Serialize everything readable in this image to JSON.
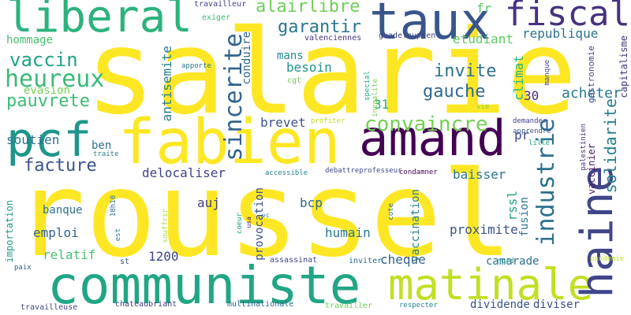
{
  "cloud": {
    "background": "#ffffff",
    "words": [
      {
        "text": "salarie",
        "color": "#fde725",
        "vertical": false
      },
      {
        "text": "roussel",
        "color": "#fde725",
        "vertical": false
      },
      {
        "text": "communiste",
        "color": "#21a685",
        "vertical": false
      },
      {
        "text": "fabien",
        "color": "#fde725",
        "vertical": false
      },
      {
        "text": "amand",
        "color": "#440154",
        "vertical": false
      },
      {
        "text": "matinale",
        "color": "#c2df23",
        "vertical": false
      },
      {
        "text": "liberal",
        "color": "#2db27d",
        "vertical": false
      },
      {
        "text": "taux",
        "color": "#39568c",
        "vertical": false
      },
      {
        "text": "pcf",
        "color": "#1f968b",
        "vertical": false
      },
      {
        "text": "haine",
        "color": "#404688",
        "vertical": true
      },
      {
        "text": "fiscal",
        "color": "#46327e",
        "vertical": false
      },
      {
        "text": "convaincre",
        "color": "#75d054",
        "vertical": false
      },
      {
        "text": "industrie",
        "color": "#2d708e",
        "vertical": true
      },
      {
        "text": "sincerite",
        "color": "#33638d",
        "vertical": true
      },
      {
        "text": "heureux",
        "color": "#3aba76",
        "vertical": false
      },
      {
        "text": "vaccin",
        "color": "#20a386",
        "vertical": false
      },
      {
        "text": "pauvrete",
        "color": "#3dbc74",
        "vertical": false
      },
      {
        "text": "facture",
        "color": "#3b528b",
        "vertical": false
      },
      {
        "text": "gauche",
        "color": "#31688e",
        "vertical": false
      },
      {
        "text": "invite",
        "color": "#2d718e",
        "vertical": false
      },
      {
        "text": "garantir",
        "color": "#2a768e",
        "vertical": false
      },
      {
        "text": "alairlibre",
        "color": "#6ece58",
        "vertical": false
      },
      {
        "text": "republique",
        "color": "#2c728e",
        "vertical": false
      },
      {
        "text": "acheter",
        "color": "#2a788e",
        "vertical": false
      },
      {
        "text": "solidarite",
        "color": "#277f8e",
        "vertical": true
      },
      {
        "text": "capitalisme",
        "color": "#46337f",
        "vertical": true
      },
      {
        "text": "gastronomie",
        "color": "#3e4a89",
        "vertical": true
      },
      {
        "text": "vaccinier",
        "color": "#481a6c",
        "vertical": true
      },
      {
        "text": "mans",
        "color": "#23898e",
        "vertical": false
      },
      {
        "text": "besoin",
        "color": "#20928c",
        "vertical": false
      },
      {
        "text": "climat",
        "color": "#2fb47c",
        "vertical": true
      },
      {
        "text": "30",
        "color": "#472c7a",
        "vertical": false
      },
      {
        "text": "31",
        "color": "#25ab82",
        "vertical": false
      },
      {
        "text": "brevet",
        "color": "#3b528b",
        "vertical": false
      },
      {
        "text": "antisemite",
        "color": "#287c8e",
        "vertical": true
      },
      {
        "text": "conduire",
        "color": "#31688e",
        "vertical": true
      },
      {
        "text": "soutien",
        "color": "#2c728e",
        "vertical": false
      },
      {
        "text": "ben",
        "color": "#2c728e",
        "vertical": false
      },
      {
        "text": "pr",
        "color": "#3e4a89",
        "vertical": false
      },
      {
        "text": "etudiant",
        "color": "#5ec962",
        "vertical": false
      },
      {
        "text": "fr",
        "color": "#5ec962",
        "vertical": false
      },
      {
        "text": "hommage",
        "color": "#44bf70",
        "vertical": false
      },
      {
        "text": "evasion",
        "color": "#75d054",
        "vertical": false
      },
      {
        "text": "delocaliser",
        "color": "#414487",
        "vertical": false
      },
      {
        "text": "baisser",
        "color": "#2a768e",
        "vertical": false
      },
      {
        "text": "auj",
        "color": "#424086",
        "vertical": false
      },
      {
        "text": "bcp",
        "color": "#31688e",
        "vertical": false
      },
      {
        "text": "banque",
        "color": "#2c728e",
        "vertical": false
      },
      {
        "text": "emploi",
        "color": "#33638d",
        "vertical": false
      },
      {
        "text": "humain",
        "color": "#2a788e",
        "vertical": false
      },
      {
        "text": "proximite",
        "color": "#3b528b",
        "vertical": false
      },
      {
        "text": "vaccination",
        "color": "#25858e",
        "vertical": true
      },
      {
        "text": "provocation",
        "color": "#3b528b",
        "vertical": true
      },
      {
        "text": "fusion",
        "color": "#2a788e",
        "vertical": true
      },
      {
        "text": "rssl",
        "color": "#20a386",
        "vertical": true
      },
      {
        "text": "relatif",
        "color": "#4ac16d",
        "vertical": false
      },
      {
        "text": "1200",
        "color": "#3f4788",
        "vertical": false
      },
      {
        "text": "cheque",
        "color": "#34618d",
        "vertical": false
      },
      {
        "text": "camarade",
        "color": "#2d708e",
        "vertical": false
      },
      {
        "text": "dividende",
        "color": "#3b528b",
        "vertical": false
      },
      {
        "text": "diviser",
        "color": "#3e4c8a",
        "vertical": false
      },
      {
        "text": "importation",
        "color": "#1f998a",
        "vertical": true
      },
      {
        "text": "travailleur",
        "color": "#424086",
        "vertical": false
      },
      {
        "text": "exiger",
        "color": "#3aba76",
        "vertical": false
      },
      {
        "text": "valenciennes",
        "color": "#46337f",
        "vertical": false
      },
      {
        "text": "guadeloupeen",
        "color": "#414487",
        "vertical": false
      },
      {
        "text": "apporte",
        "color": "#2a788e",
        "vertical": false
      },
      {
        "text": "cgt",
        "color": "#6ece58",
        "vertical": false
      },
      {
        "text": "vie",
        "color": "#7ad151",
        "vertical": false
      },
      {
        "text": "special",
        "color": "#22a884",
        "vertical": true
      },
      {
        "text": "inegalite",
        "color": "#7ad151",
        "vertical": true
      },
      {
        "text": "manque",
        "color": "#3e4a89",
        "vertical": true
      },
      {
        "text": "profiter",
        "color": "#bddf26",
        "vertical": false
      },
      {
        "text": "demander",
        "color": "#424086",
        "vertical": false
      },
      {
        "text": "apprendre",
        "color": "#3b528b",
        "vertical": false
      },
      {
        "text": "lille",
        "color": "#23a983",
        "vertical": false
      },
      {
        "text": "palestinien",
        "color": "#472d7b",
        "vertical": true
      },
      {
        "text": "traite",
        "color": "#27808e",
        "vertical": false
      },
      {
        "text": "accessible",
        "color": "#26828e",
        "vertical": false
      },
      {
        "text": "debattreprofesseur",
        "color": "#3e4989",
        "vertical": false
      },
      {
        "text": "condamner",
        "color": "#440154",
        "vertical": false
      },
      {
        "text": "cote",
        "color": "#2c728e",
        "vertical": true
      },
      {
        "text": "coeur",
        "color": "#1fa188",
        "vertical": true
      },
      {
        "text": "usa",
        "color": "#471063",
        "vertical": true
      },
      {
        "text": "vc",
        "color": "#2c728e",
        "vertical": false
      },
      {
        "text": "18h10",
        "color": "#2c728e",
        "vertical": true
      },
      {
        "text": "est",
        "color": "#2a788e",
        "vertical": true
      },
      {
        "text": "souffrir",
        "color": "#a0da39",
        "vertical": true
      },
      {
        "text": "assassinat",
        "color": "#414487",
        "vertical": false
      },
      {
        "text": "inviter",
        "color": "#2f6c8e",
        "vertical": false
      },
      {
        "text": "nord",
        "color": "#21918c",
        "vertical": false
      },
      {
        "text": "pandemie",
        "color": "#c0df25",
        "vertical": false
      },
      {
        "text": "st",
        "color": "#3b528b",
        "vertical": false
      },
      {
        "text": "paix",
        "color": "#33638d",
        "vertical": false
      },
      {
        "text": "travailleuse",
        "color": "#414487",
        "vertical": false
      },
      {
        "text": "chateaubriant",
        "color": "#424086",
        "vertical": false
      },
      {
        "text": "multinationale",
        "color": "#31688e",
        "vertical": false
      },
      {
        "text": "travailler",
        "color": "#6ece58",
        "vertical": false
      },
      {
        "text": "respecter",
        "color": "#26828e",
        "vertical": false
      }
    ]
  }
}
